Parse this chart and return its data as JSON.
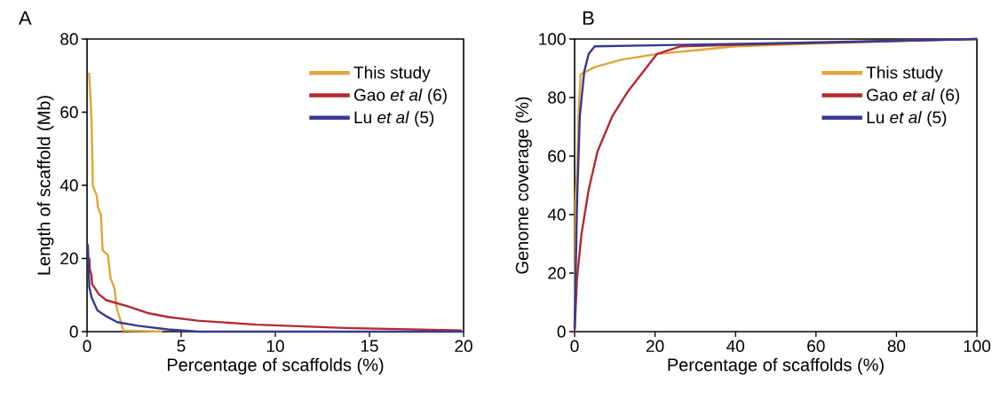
{
  "chart_data": [
    {
      "type": "line",
      "title": "A",
      "xlabel": "Percentage of scaffolds (%)",
      "ylabel": "Length of scaffold (Mb)",
      "xlim": [
        0,
        20
      ],
      "ylim": [
        0,
        80
      ],
      "xticks": [
        0,
        5,
        10,
        15,
        20
      ],
      "yticks": [
        0,
        20,
        40,
        60,
        80
      ],
      "legend": "top right",
      "series": [
        {
          "name": "This study",
          "color": "#e0a53a",
          "x": [
            0.11,
            0.19,
            0.24,
            0.27,
            0.31,
            0.52,
            0.58,
            0.74,
            0.83,
            1.1,
            1.25,
            1.46,
            1.57,
            1.8,
            1.93,
            4.0
          ],
          "values": [
            70.8,
            63.2,
            57.6,
            50.4,
            39.9,
            37.1,
            33.9,
            31.9,
            22.2,
            21.0,
            14.6,
            11.8,
            6.6,
            2.6,
            0.3,
            0
          ]
        },
        {
          "name": "Gao *et al* (6)",
          "color": "#b32a31",
          "x": [
            0.12,
            0.15,
            0.24,
            0.27,
            0.63,
            1.02,
            2.11,
            3.21,
            4.31,
            5.87,
            9.0,
            13.7,
            19.9
          ],
          "values": [
            20.2,
            17.0,
            15.4,
            13.0,
            10.2,
            8.6,
            7.0,
            5.1,
            4.0,
            3.0,
            1.9,
            1.0,
            0.3
          ]
        },
        {
          "name": "Lu *et al* (5)",
          "color": "#373a92",
          "x": [
            0.04,
            0.08,
            0.12,
            0.24,
            0.55,
            1.02,
            1.6,
            2.7,
            4.3,
            5.9,
            20
          ],
          "values": [
            23.9,
            18.6,
            12.2,
            9.4,
            5.8,
            4.2,
            2.6,
            1.6,
            0.6,
            0,
            0
          ]
        }
      ]
    },
    {
      "type": "line",
      "title": "B",
      "xlabel": "Percentage of scaffolds (%)",
      "ylabel": "Genome coverage (%)",
      "xlim": [
        0,
        100
      ],
      "ylim": [
        0,
        100
      ],
      "xticks": [
        0,
        20,
        40,
        60,
        80,
        100
      ],
      "yticks": [
        0,
        20,
        40,
        60,
        80,
        100
      ],
      "legend": "top right",
      "series": [
        {
          "name": "This study",
          "color": "#e0a53a",
          "x": [
            0,
            0.2,
            0.6,
            1.0,
            1.5,
            5,
            11.6,
            20.5,
            40,
            60,
            80,
            100
          ],
          "values": [
            0,
            45,
            53.5,
            75,
            87.9,
            90.4,
            92.9,
            94.9,
            97.5,
            98.5,
            99.3,
            100
          ]
        },
        {
          "name": "Gao *et al* (6)",
          "color": "#b32a31",
          "x": [
            0,
            0.6,
            1.7,
            3.5,
            5.7,
            9.4,
            13.1,
            20.5,
            26.4,
            40,
            100
          ],
          "values": [
            0,
            18.2,
            33.3,
            48.5,
            61.6,
            73.7,
            81.8,
            94.9,
            97.5,
            98,
            100
          ]
        },
        {
          "name": "Lu *et al* (5)",
          "color": "#373a92",
          "x": [
            0,
            0.6,
            1.3,
            2.4,
            3.5,
            5,
            47,
            100
          ],
          "values": [
            1.0,
            43.4,
            73.7,
            88.9,
            94.9,
            97.5,
            98.5,
            100
          ]
        }
      ]
    }
  ]
}
